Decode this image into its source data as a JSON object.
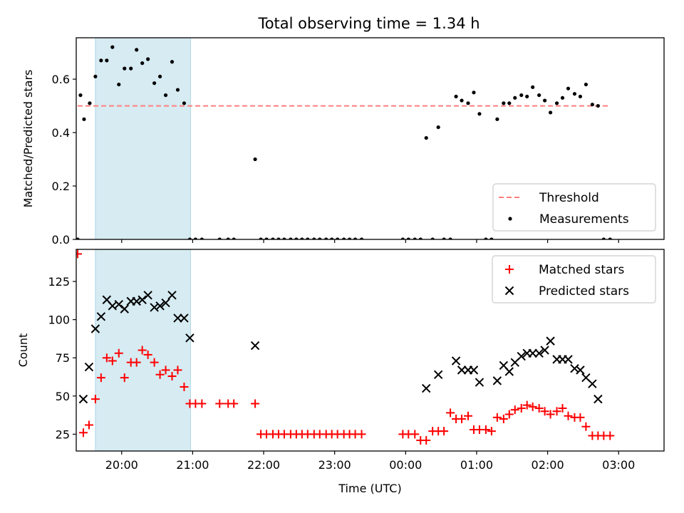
{
  "title": "Total observing time = 1.34 h",
  "colors": {
    "threshold": "#ff7f7f",
    "measurement": "#000000",
    "matched": "#ff0000",
    "predicted": "#000000",
    "highlight": "#add8e6"
  },
  "chart_data": [
    {
      "type": "scatter",
      "ylabel": "Matched/Predicted stars",
      "xlim": [
        -0.64,
        7.64
      ],
      "ylim": [
        0,
        0.755
      ],
      "yticks": [
        0.0,
        0.2,
        0.4,
        0.6
      ],
      "ytick_labels": [
        "0.0",
        "0.2",
        "0.4",
        "0.6"
      ],
      "highlight_span": [
        -0.37,
        0.97
      ],
      "threshold": {
        "name": "Threshold",
        "value": 0.5,
        "x_range": [
          -0.62,
          6.88
        ],
        "style": "dashed"
      },
      "legend": {
        "location": "lower right",
        "entries": [
          "Threshold",
          "Measurements"
        ]
      },
      "series": [
        {
          "name": "Measurements",
          "marker": "dot",
          "x": [
            -0.62,
            -0.58,
            -0.53,
            -0.45,
            -0.37,
            -0.29,
            -0.21,
            -0.13,
            -0.04,
            0.04,
            0.13,
            0.21,
            0.29,
            0.37,
            0.46,
            0.54,
            0.62,
            0.71,
            0.79,
            0.88,
            0.96,
            1.04,
            1.13,
            1.38,
            1.5,
            1.58,
            1.88,
            1.96,
            2.04,
            2.13,
            2.21,
            2.29,
            2.38,
            2.46,
            2.54,
            2.62,
            2.71,
            2.79,
            2.88,
            2.96,
            3.04,
            3.13,
            3.21,
            3.29,
            3.38,
            3.96,
            4.04,
            4.13,
            4.21,
            4.29,
            4.38,
            4.46,
            4.54,
            4.63,
            4.71,
            4.79,
            4.88,
            4.96,
            5.04,
            5.13,
            5.21,
            5.29,
            5.38,
            5.46,
            5.54,
            5.63,
            5.71,
            5.79,
            5.88,
            5.96,
            6.04,
            6.13,
            6.21,
            6.29,
            6.38,
            6.46,
            6.54,
            6.63,
            6.71,
            6.79,
            6.88
          ],
          "y": [
            0,
            0.54,
            0.45,
            0.51,
            0.61,
            0.67,
            0.67,
            0.72,
            0.58,
            0.64,
            0.64,
            0.71,
            0.66,
            0.675,
            0.585,
            0.61,
            0.54,
            0.665,
            0.56,
            0.51,
            0,
            0,
            0,
            0,
            0,
            0,
            0.3,
            0,
            0,
            0,
            0,
            0,
            0,
            0,
            0,
            0,
            0,
            0,
            0,
            0,
            0,
            0,
            0,
            0,
            0,
            0,
            0,
            0,
            0,
            0.38,
            0,
            0.42,
            0,
            0,
            0.535,
            0.52,
            0.51,
            0.55,
            0.47,
            0,
            0,
            0.45,
            0.51,
            0.51,
            0.53,
            0.54,
            0.535,
            0.57,
            0.54,
            0.52,
            0.475,
            0.51,
            0.53,
            0.565,
            0.545,
            0.535,
            0.58,
            0.505,
            0.5,
            0,
            0
          ]
        }
      ]
    },
    {
      "type": "scatter",
      "ylabel": "Count",
      "xlabel": "Time (UTC)",
      "xlim": [
        -0.64,
        7.64
      ],
      "ylim": [
        14,
        146
      ],
      "yticks": [
        25,
        50,
        75,
        100,
        125
      ],
      "ytick_labels": [
        "25",
        "50",
        "75",
        "100",
        "125"
      ],
      "xticks": [
        0,
        1,
        2,
        3,
        4,
        5,
        6,
        7
      ],
      "xtick_labels": [
        "20:00",
        "21:00",
        "22:00",
        "23:00",
        "00:00",
        "01:00",
        "02:00",
        "03:00"
      ],
      "highlight_span": [
        -0.37,
        0.97
      ],
      "legend": {
        "location": "upper right",
        "entries": [
          "Matched stars",
          "Predicted stars"
        ]
      },
      "series": [
        {
          "name": "Matched stars",
          "marker": "plus",
          "x": [
            -0.62,
            -0.54,
            -0.46,
            -0.37,
            -0.29,
            -0.21,
            -0.13,
            -0.04,
            0.04,
            0.13,
            0.21,
            0.29,
            0.37,
            0.46,
            0.54,
            0.62,
            0.71,
            0.79,
            0.88,
            0.96,
            1.04,
            1.13,
            1.38,
            1.5,
            1.58,
            1.88,
            1.96,
            2.04,
            2.13,
            2.21,
            2.29,
            2.38,
            2.46,
            2.54,
            2.62,
            2.71,
            2.79,
            2.88,
            2.96,
            3.04,
            3.13,
            3.21,
            3.29,
            3.38,
            3.96,
            4.04,
            4.13,
            4.21,
            4.29,
            4.38,
            4.46,
            4.54,
            4.63,
            4.71,
            4.79,
            4.88,
            4.96,
            5.04,
            5.13,
            5.21,
            5.29,
            5.38,
            5.46,
            5.54,
            5.63,
            5.71,
            5.79,
            5.88,
            5.96,
            6.04,
            6.13,
            6.21,
            6.29,
            6.38,
            6.46,
            6.54,
            6.63,
            6.71,
            6.79,
            6.88
          ],
          "y": [
            143,
            26,
            31,
            48,
            62,
            75,
            73,
            78,
            62,
            72,
            72,
            80,
            77,
            72,
            64,
            67,
            63,
            67,
            56,
            45,
            45,
            45,
            45,
            45,
            45,
            45,
            25,
            25,
            25,
            25,
            25,
            25,
            25,
            25,
            25,
            25,
            25,
            25,
            25,
            25,
            25,
            25,
            25,
            25,
            25,
            25,
            25,
            21,
            21,
            27,
            27,
            27,
            39,
            35,
            35,
            37,
            28,
            28,
            28,
            27,
            36,
            35,
            38,
            41,
            42,
            44,
            43,
            42,
            40,
            38,
            40,
            42,
            37,
            36,
            36,
            30,
            24,
            24,
            24,
            24
          ]
        },
        {
          "name": "Predicted stars",
          "marker": "x",
          "x": [
            -0.54,
            -0.46,
            -0.37,
            -0.29,
            -0.21,
            -0.13,
            -0.04,
            0.04,
            0.13,
            0.21,
            0.29,
            0.37,
            0.46,
            0.54,
            0.62,
            0.71,
            0.79,
            0.88,
            0.96,
            1.88,
            4.29,
            4.46,
            4.71,
            4.79,
            4.88,
            4.96,
            5.04,
            5.29,
            5.38,
            5.46,
            5.54,
            5.63,
            5.71,
            5.79,
            5.88,
            5.96,
            6.04,
            6.13,
            6.21,
            6.29,
            6.38,
            6.46,
            6.54,
            6.63,
            6.71
          ],
          "y": [
            48,
            69,
            94,
            102,
            113,
            109,
            110,
            107,
            112,
            112,
            113,
            116,
            108,
            109,
            111,
            116,
            101,
            101,
            88,
            83,
            55,
            64,
            73,
            67,
            67,
            67,
            59,
            60,
            70,
            66,
            72,
            76,
            78,
            78,
            78,
            80,
            86,
            74,
            74,
            74,
            68,
            67,
            62,
            58,
            48
          ]
        }
      ]
    }
  ]
}
